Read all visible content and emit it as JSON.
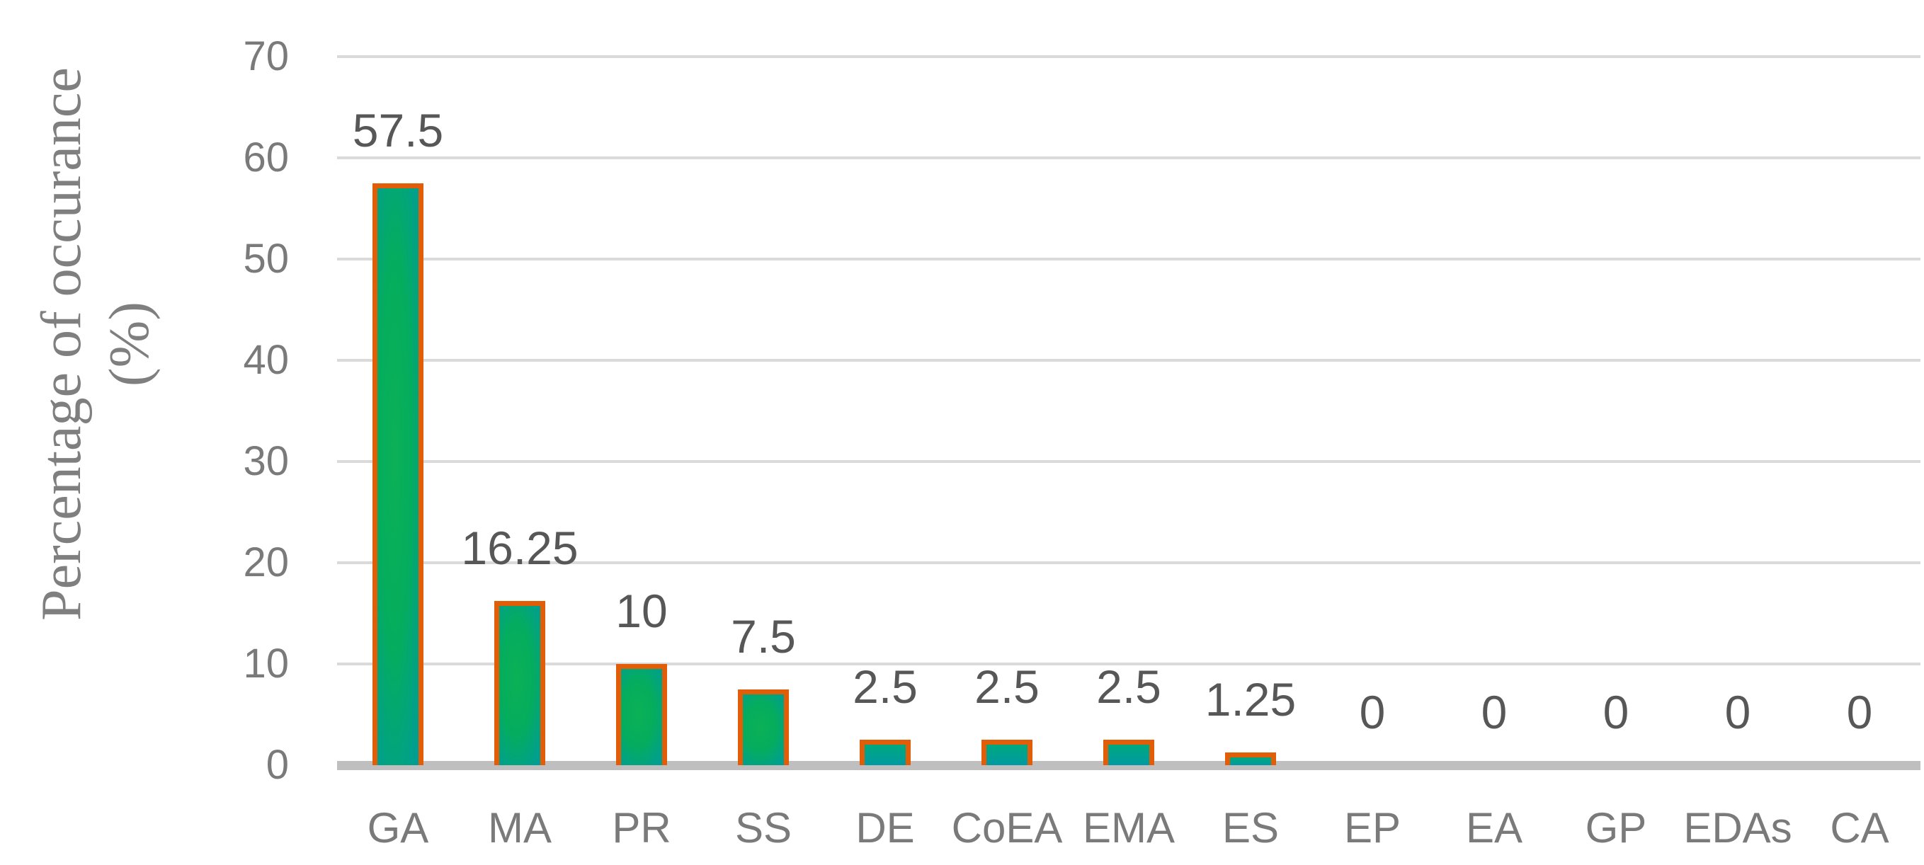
{
  "chart_data": {
    "type": "bar",
    "categories": [
      "GA",
      "MA",
      "PR",
      "SS",
      "DE",
      "CoEA",
      "EMA",
      "ES",
      "EP",
      "EA",
      "GP",
      "EDAs",
      "CA"
    ],
    "values": [
      57.5,
      16.25,
      10,
      7.5,
      2.5,
      2.5,
      2.5,
      1.25,
      0,
      0,
      0,
      0,
      0
    ],
    "data_labels": [
      "57.5",
      "16.25",
      "10",
      "7.5",
      "2.5",
      "2.5",
      "2.5",
      "1.25",
      "0",
      "0",
      "0",
      "0",
      "0"
    ],
    "ylabel_line1": "Percentage of occurance",
    "ylabel_line2": "(%)",
    "yticks": [
      70,
      60,
      50,
      40,
      30,
      20,
      10,
      0
    ],
    "ylim": [
      0,
      70
    ],
    "grid": "horizontal",
    "legend": "none",
    "title": ""
  },
  "colors": {
    "bar_green": "#0cb156",
    "bar_teal": "#00999f",
    "bar_border": "#e25d07",
    "gridline": "#dadada",
    "axis_line": "#bfbfbf",
    "tick_label": "#7a7a7a",
    "data_label": "#575757",
    "axis_title": "#7f7f7f"
  }
}
